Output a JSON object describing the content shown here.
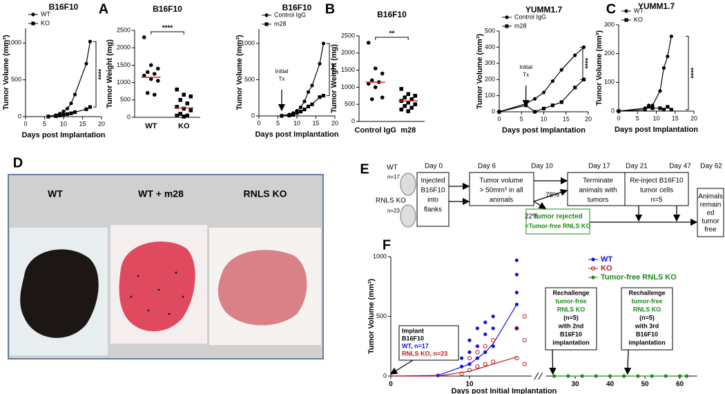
{
  "panel_labels": [
    "A",
    "B",
    "C",
    "D",
    "E",
    "F"
  ],
  "chart_data": [
    {
      "type": "line",
      "title": "B16F10",
      "xlabel": "Days post Implantation",
      "ylabel": "Tumor Volume (mm³)",
      "xlim": [
        0,
        20
      ],
      "xticks": [
        0,
        5,
        10,
        15,
        20
      ],
      "ylim": [
        0,
        1200
      ],
      "yticks": [
        0,
        500,
        1000
      ],
      "x": [
        6,
        8,
        9,
        10,
        11,
        12,
        13,
        16,
        17
      ],
      "series": [
        {
          "name": "WT",
          "color": "#000000",
          "marker": "circle",
          "values": [
            5,
            20,
            40,
            70,
            110,
            180,
            300,
            720,
            1020
          ]
        },
        {
          "name": "KO",
          "color": "#000000",
          "marker": "square",
          "values": [
            0,
            5,
            15,
            25,
            35,
            45,
            60,
            100,
            130
          ]
        }
      ],
      "significance": "****"
    },
    {
      "type": "dot",
      "title": "B16F10",
      "ylabel": "Tumor Weight (mg)",
      "ylim": [
        0,
        2500
      ],
      "yticks": [
        0,
        500,
        1000,
        1500,
        2000,
        2500
      ],
      "categories": [
        "WT",
        "KO"
      ],
      "mean_color": "#e02020",
      "groups": [
        [
          2300,
          1500,
          1400,
          1300,
          1250,
          1200,
          1100,
          1050,
          700,
          650
        ],
        [
          800,
          650,
          600,
          500,
          400,
          300,
          250,
          200,
          100,
          50,
          50,
          20
        ]
      ],
      "means": [
        1150,
        270
      ],
      "significance": "****"
    },
    {
      "type": "line",
      "title": "B16F10",
      "xlabel": "Days post Implantation",
      "ylabel": "Tumor Volume (mm³)",
      "xlim": [
        0,
        20
      ],
      "xticks": [
        0,
        5,
        10,
        15,
        20
      ],
      "ylim": [
        0,
        1200
      ],
      "yticks": [
        0,
        500,
        1000
      ],
      "x": [
        6,
        8,
        9,
        10,
        11,
        12,
        13,
        14,
        16,
        17
      ],
      "series": [
        {
          "name": "Control IgG",
          "color": "#000000",
          "marker": "circle",
          "values": [
            5,
            20,
            40,
            70,
            120,
            200,
            330,
            420,
            720,
            1000
          ]
        },
        {
          "name": "m28",
          "color": "#000000",
          "marker": "square",
          "values": [
            0,
            5,
            15,
            40,
            60,
            90,
            130,
            160,
            260,
            280
          ]
        }
      ],
      "annotation": {
        "lines": [
          "Initial",
          "Tx"
        ],
        "x": 6
      },
      "significance": "****"
    },
    {
      "type": "dot",
      "title": "B16F10",
      "ylabel": "Tumor Weight (mg)",
      "ylim": [
        0,
        2500
      ],
      "yticks": [
        0,
        500,
        1000,
        1500,
        2000,
        2500
      ],
      "categories": [
        "Control IgG",
        "m28"
      ],
      "mean_color": "#e02020",
      "groups": [
        [
          2300,
          1550,
          1400,
          1200,
          1150,
          1100,
          1000,
          700,
          650
        ],
        [
          950,
          800,
          750,
          700,
          650,
          600,
          550,
          500,
          450,
          400,
          350,
          300
        ]
      ],
      "means": [
        1150,
        600
      ],
      "significance": "**"
    },
    {
      "type": "line",
      "title": "YUMM1.7",
      "xlabel": "Days post Implantation",
      "ylabel": "Tumor Volume (mm³)",
      "xlim": [
        0,
        20
      ],
      "xticks": [
        0,
        5,
        10,
        15,
        20
      ],
      "ylim": [
        0,
        500
      ],
      "yticks": [
        0,
        100,
        200,
        300,
        400,
        500
      ],
      "x": [
        0,
        6,
        8,
        10,
        12,
        14,
        17,
        19
      ],
      "series": [
        {
          "name": "Control IgG",
          "color": "#000000",
          "marker": "circle",
          "values": [
            0,
            50,
            80,
            120,
            190,
            260,
            350,
            400
          ]
        },
        {
          "name": "m28",
          "color": "#000000",
          "marker": "square",
          "values": [
            0,
            40,
            0,
            20,
            40,
            60,
            150,
            200
          ]
        }
      ],
      "annotation": {
        "lines": [
          "Initial",
          "Tx"
        ],
        "x": 6
      },
      "significance": "****"
    },
    {
      "type": "line",
      "title": "YUMM1.7",
      "xlabel": "Days post Implantation",
      "ylabel": "Tumor Volume (mm³)",
      "xlim": [
        0,
        20
      ],
      "xticks": [
        0,
        5,
        10,
        15,
        20
      ],
      "ylim": [
        0,
        300
      ],
      "yticks": [
        0,
        100,
        200,
        300
      ],
      "x": [
        0,
        7,
        8,
        9,
        11,
        12,
        13,
        14
      ],
      "series": [
        {
          "name": "WT",
          "color": "#000000",
          "marker": "circle",
          "values": [
            0,
            10,
            20,
            20,
            70,
            150,
            190,
            260
          ]
        },
        {
          "name": "KO",
          "color": "#000000",
          "marker": "square",
          "values": [
            0,
            5,
            15,
            10,
            10,
            5,
            15,
            5
          ]
        }
      ],
      "significance": "****"
    },
    {
      "type": "scatter",
      "xlabel": "Days post Initial Implantation",
      "ylabel": "Tumor Volume (mm³)",
      "xlim": [
        0,
        65
      ],
      "xticks": [
        0,
        10,
        30,
        40,
        50,
        60
      ],
      "x_break": [
        17,
        24
      ],
      "ylim": [
        0,
        1000
      ],
      "yticks": [
        0,
        500,
        1000
      ],
      "legend": "upper right",
      "series": [
        {
          "name": "WT",
          "color": "#1010e0",
          "marker": "filled",
          "x": [
            6,
            9,
            9,
            10,
            10,
            10,
            11,
            11,
            11,
            12,
            12,
            12,
            13,
            13,
            13,
            16,
            16,
            16,
            16,
            16
          ],
          "values": [
            5,
            80,
            150,
            100,
            200,
            300,
            150,
            250,
            400,
            200,
            350,
            450,
            250,
            400,
            500,
            400,
            600,
            700,
            850,
            970
          ],
          "mean_x": [
            0,
            6,
            10,
            11,
            12,
            13,
            16
          ],
          "mean_values": [
            0,
            5,
            100,
            150,
            200,
            270,
            600
          ]
        },
        {
          "name": "KO",
          "color": "#c01818",
          "marker": "open",
          "x": [
            9,
            10,
            10,
            11,
            11,
            12,
            12,
            13,
            13,
            16,
            16,
            17,
            17,
            17
          ],
          "values": [
            20,
            50,
            150,
            80,
            200,
            100,
            250,
            120,
            300,
            150,
            400,
            100,
            300,
            500
          ],
          "mean_x": [
            0,
            6,
            10,
            11,
            12,
            13,
            16
          ],
          "mean_values": [
            0,
            0,
            40,
            60,
            80,
            100,
            160
          ]
        },
        {
          "name": "Tumor-free RNLS KO",
          "color": "#1a8a1a",
          "marker": "filled",
          "x": [
            24,
            28,
            32,
            36,
            40,
            44,
            48,
            52,
            56,
            60,
            62
          ],
          "values": [
            0,
            0,
            0,
            0,
            0,
            0,
            0,
            0,
            0,
            0,
            0
          ],
          "mean_x": [
            24,
            28,
            32,
            36,
            40,
            44,
            48,
            52,
            56,
            60,
            62
          ],
          "mean_values": [
            0,
            0,
            0,
            0,
            0,
            0,
            0,
            0,
            0,
            0,
            0
          ]
        }
      ],
      "annotations": [
        {
          "lines": [
            {
              "text": "Implant",
              "color": "#000000"
            },
            {
              "text": "B16F10",
              "color": "#000000"
            },
            {
              "text": "WT, n=17",
              "color": "#1010e0"
            },
            {
              "text": "RNLS KO, n=23",
              "color": "#c01818"
            }
          ]
        },
        {
          "lines": [
            {
              "text": "Rechallenge",
              "color": "#000000"
            },
            {
              "text": "tumor-free",
              "color": "#1a8a1a"
            },
            {
              "text": "RNLS KO",
              "color": "#1a8a1a"
            },
            {
              "text": "(n=5)",
              "color": "#000000"
            },
            {
              "text": "with 2nd",
              "color": "#000000"
            },
            {
              "text": "B16F10",
              "color": "#000000"
            },
            {
              "text": "implantation",
              "color": "#000000"
            }
          ]
        },
        {
          "lines": [
            {
              "text": "Rechallenge",
              "color": "#000000"
            },
            {
              "text": "tumor-free",
              "color": "#1a8a1a"
            },
            {
              "text": "RNLS KO",
              "color": "#1a8a1a"
            },
            {
              "text": "(n=5)",
              "color": "#000000"
            },
            {
              "text": "with 3rd",
              "color": "#000000"
            },
            {
              "text": "B16F10",
              "color": "#000000"
            },
            {
              "text": "implantation",
              "color": "#000000"
            }
          ]
        }
      ]
    }
  ],
  "photos": {
    "labels": [
      "WT",
      "WT + m28",
      "RNLS KO"
    ]
  },
  "diagram": {
    "days": [
      "Day 0",
      "Day 6",
      "Day 10",
      "Day 17",
      "Day 21",
      "Day 47",
      "Day 62"
    ],
    "groups": [
      {
        "name": "WT",
        "n": "n=17"
      },
      {
        "name": "RNLS KO",
        "n": "n=23"
      }
    ],
    "boxes": [
      [
        "Injected",
        "B16F10",
        "into",
        "flanks"
      ],
      [
        "Tumor volume",
        "> 50mm³ in all",
        "animals"
      ],
      [
        "Terminate",
        "animals with",
        "tumors"
      ],
      [
        "Re-inject B16F10",
        "tumor cells",
        "n=5"
      ],
      [
        "Animals",
        "remain",
        "ed",
        "tumor",
        "free"
      ]
    ],
    "rejected": [
      "Tumor rejected",
      "=Tumor-free RNLS KO"
    ],
    "percents": [
      "78%",
      "22%"
    ]
  }
}
